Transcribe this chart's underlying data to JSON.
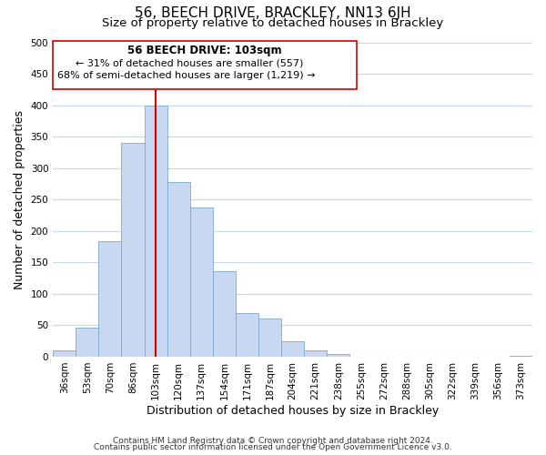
{
  "title": "56, BEECH DRIVE, BRACKLEY, NN13 6JH",
  "subtitle": "Size of property relative to detached houses in Brackley",
  "xlabel": "Distribution of detached houses by size in Brackley",
  "ylabel": "Number of detached properties",
  "bar_labels": [
    "36sqm",
    "53sqm",
    "70sqm",
    "86sqm",
    "103sqm",
    "120sqm",
    "137sqm",
    "154sqm",
    "171sqm",
    "187sqm",
    "204sqm",
    "221sqm",
    "238sqm",
    "255sqm",
    "272sqm",
    "288sqm",
    "305sqm",
    "322sqm",
    "339sqm",
    "356sqm",
    "373sqm"
  ],
  "bar_heights": [
    10,
    46,
    184,
    340,
    400,
    278,
    238,
    136,
    70,
    61,
    25,
    10,
    5,
    0,
    0,
    0,
    0,
    0,
    0,
    0,
    2
  ],
  "bar_color": "#c8d8f0",
  "bar_edge_color": "#7aaad0",
  "vline_x_index": 4,
  "vline_color": "#cc0000",
  "annotation_line1": "56 BEECH DRIVE: 103sqm",
  "annotation_line2": "← 31% of detached houses are smaller (557)",
  "annotation_line3": "68% of semi-detached houses are larger (1,219) →",
  "ylim": [
    0,
    500
  ],
  "yticks": [
    0,
    50,
    100,
    150,
    200,
    250,
    300,
    350,
    400,
    450,
    500
  ],
  "footnote1": "Contains HM Land Registry data © Crown copyright and database right 2024.",
  "footnote2": "Contains public sector information licensed under the Open Government Licence v3.0.",
  "background_color": "#ffffff",
  "grid_color": "#c8d8e8",
  "title_fontsize": 11,
  "subtitle_fontsize": 9.5,
  "xlabel_fontsize": 9,
  "ylabel_fontsize": 9,
  "tick_fontsize": 7.5,
  "annotation_fontsize": 8.5,
  "footnote_fontsize": 6.5
}
